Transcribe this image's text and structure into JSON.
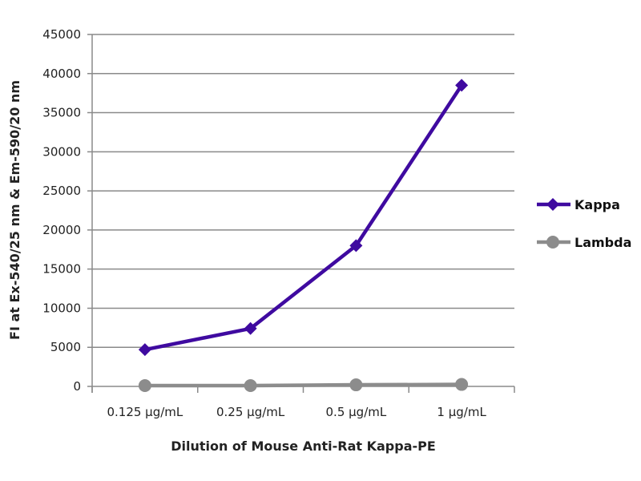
{
  "chart_data": {
    "type": "line",
    "title": "",
    "xlabel": "Dilution of Mouse Anti-Rat Kappa-PE",
    "ylabel": "FI at Ex-540/25 nm & Em-590/20 nm",
    "categories": [
      "0.125 µg/mL",
      "0.25 µg/mL",
      "0.5 µg/mL",
      "1 µg/mL"
    ],
    "ylim": [
      0,
      45000
    ],
    "yticks": [
      0,
      5000,
      10000,
      15000,
      20000,
      25000,
      30000,
      35000,
      40000,
      45000
    ],
    "grid": true,
    "legend_position": "right",
    "series": [
      {
        "name": "Kappa",
        "values": [
          4700,
          7400,
          18000,
          38500
        ],
        "color": "#3f0aa0",
        "marker": "diamond"
      },
      {
        "name": "Lambda",
        "values": [
          100,
          100,
          200,
          250
        ],
        "color": "#8c8c8c",
        "marker": "circle"
      }
    ]
  }
}
